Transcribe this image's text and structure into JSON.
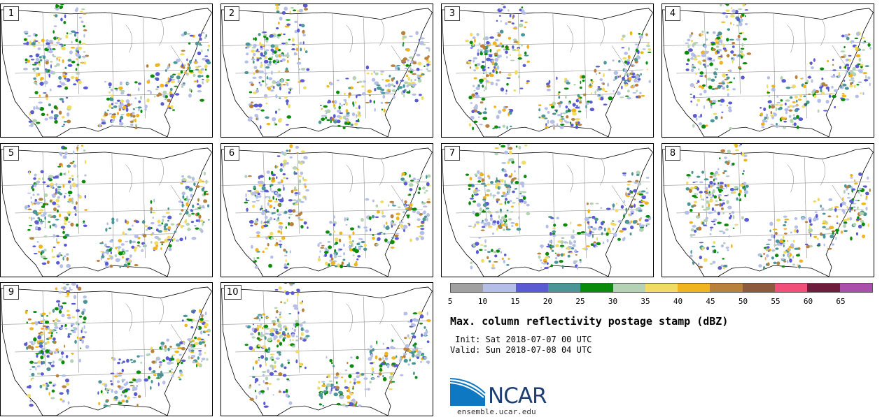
{
  "panels": [
    {
      "label": "1"
    },
    {
      "label": "2"
    },
    {
      "label": "3"
    },
    {
      "label": "4"
    },
    {
      "label": "5"
    },
    {
      "label": "6"
    },
    {
      "label": "7"
    },
    {
      "label": "8"
    },
    {
      "label": "9"
    },
    {
      "label": "10"
    }
  ],
  "colorbar": {
    "colors": [
      "#a0a0a0",
      "#b4bee6",
      "#5a5ad2",
      "#4a9696",
      "#0a8c0a",
      "#b4d2b4",
      "#f0dc64",
      "#f0b41e",
      "#b9823c",
      "#8c5a3c",
      "#f0507a",
      "#6e1e3c",
      "#aa50aa"
    ],
    "ticks": [
      "5",
      "10",
      "15",
      "20",
      "25",
      "30",
      "35",
      "40",
      "45",
      "50",
      "55",
      "60",
      "65"
    ]
  },
  "title": "Max. column reflectivity postage stamp (dBZ)",
  "init_line": " Init: Sat 2018-07-07 00 UTC",
  "valid_line": "Valid: Sun 2018-07-08 04 UTC",
  "logo": {
    "text": "NCAR",
    "site": "ensemble.ucar.edu",
    "color": "#0f78c3"
  }
}
